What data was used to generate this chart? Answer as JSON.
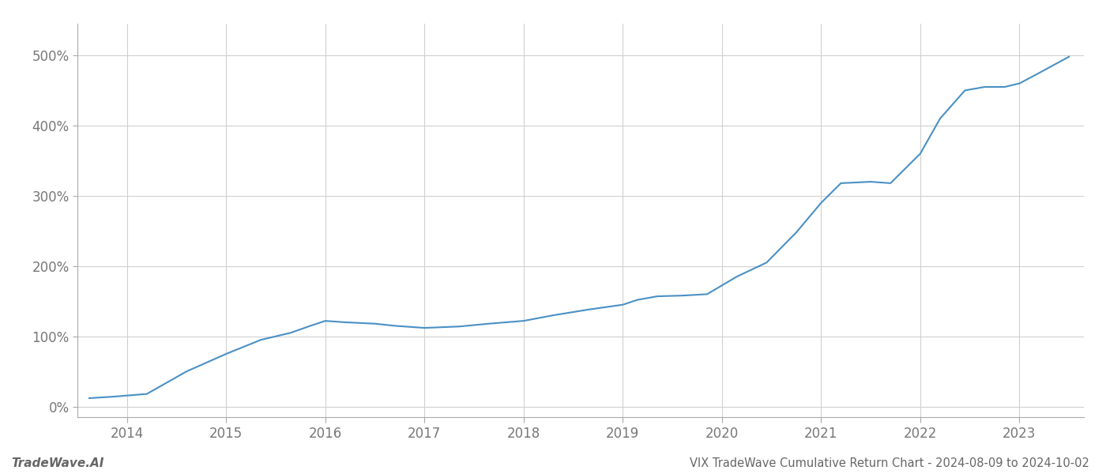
{
  "title": "VIX TradeWave Cumulative Return Chart - 2024-08-09 to 2024-10-02",
  "watermark": "TradeWave.AI",
  "line_color": "#4a90c4",
  "background_color": "#ffffff",
  "grid_color": "#d0d0d0",
  "x_values": [
    2013.62,
    2013.85,
    2014.2,
    2014.6,
    2015.0,
    2015.35,
    2015.65,
    2015.85,
    2016.0,
    2016.2,
    2016.5,
    2016.7,
    2017.0,
    2017.35,
    2017.65,
    2018.0,
    2018.3,
    2018.65,
    2019.0,
    2019.15,
    2019.35,
    2019.6,
    2019.85,
    2020.15,
    2020.45,
    2020.75,
    2021.0,
    2021.2,
    2021.5,
    2021.7,
    2022.0,
    2022.2,
    2022.45,
    2022.65,
    2022.85,
    2023.0,
    2023.2,
    2023.5
  ],
  "y_values": [
    12,
    14,
    18,
    50,
    75,
    95,
    105,
    115,
    122,
    120,
    118,
    115,
    112,
    114,
    118,
    122,
    130,
    138,
    145,
    152,
    157,
    158,
    160,
    185,
    205,
    248,
    290,
    318,
    320,
    318,
    360,
    410,
    450,
    455,
    455,
    460,
    475,
    498
  ],
  "xlim": [
    2013.5,
    2023.65
  ],
  "ylim": [
    -15,
    545
  ],
  "yticks": [
    0,
    100,
    200,
    300,
    400,
    500
  ],
  "ytick_labels": [
    "0%",
    "100%",
    "200%",
    "300%",
    "400%",
    "500%"
  ],
  "xticks": [
    2014,
    2015,
    2016,
    2017,
    2018,
    2019,
    2020,
    2021,
    2022,
    2023
  ],
  "line_width": 1.5,
  "title_fontsize": 10.5,
  "tick_fontsize": 12,
  "watermark_fontsize": 11
}
